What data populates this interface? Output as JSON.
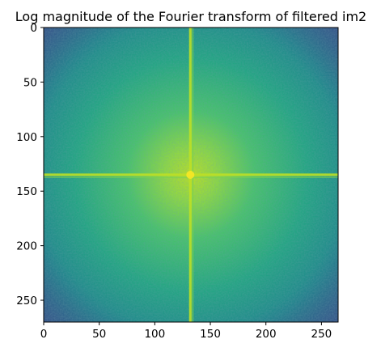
{
  "chart_data": {
    "type": "heatmap",
    "title": "Log magnitude of the Fourier transform of filtered im2",
    "xlabel": "",
    "ylabel": "",
    "image_width": 265,
    "image_height": 270,
    "xlim": [
      0,
      265
    ],
    "ylim": [
      270,
      0
    ],
    "x_ticks": [
      0,
      50,
      100,
      150,
      200,
      250
    ],
    "y_ticks": [
      0,
      50,
      100,
      150,
      200,
      250
    ],
    "center": [
      132,
      135
    ],
    "colormap": "viridis",
    "colors": {
      "low": "#3b528b",
      "mid": "#21918c",
      "high": "#b5de2b",
      "peak": "#fde725"
    },
    "grid": false,
    "legend": "none"
  }
}
